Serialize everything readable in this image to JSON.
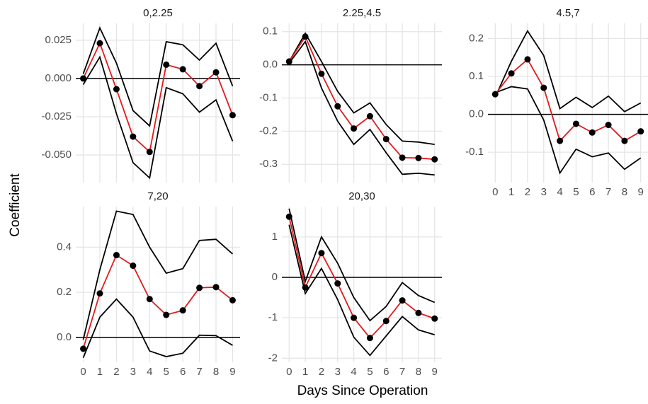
{
  "y_label": "Coefficient",
  "x_label": "Days Since Operation",
  "chart_data": [
    {
      "type": "line",
      "title": "0,2.25",
      "x": [
        0,
        1,
        2,
        3,
        4,
        5,
        6,
        7,
        8,
        9
      ],
      "xlim": [
        -0.45,
        9.45
      ],
      "xticks": [
        0,
        1,
        2,
        3,
        4,
        5,
        6,
        7,
        8,
        9
      ],
      "show_xticklabels": false,
      "ylim": [
        -0.068,
        0.036
      ],
      "yticks": [
        {
          "value": -0.05,
          "label": "-0.050"
        },
        {
          "value": -0.025,
          "label": "-0.025"
        },
        {
          "value": 0,
          "label": "0.000"
        },
        {
          "value": 0.025,
          "label": "0.025"
        }
      ],
      "hline": 0,
      "grid": true,
      "series": [
        {
          "color": "#000000",
          "values": [
            -0.004,
            0.014,
            -0.023,
            -0.055,
            -0.065,
            -0.006,
            -0.01,
            -0.022,
            -0.014,
            -0.041
          ]
        },
        {
          "color": "#000000",
          "values": [
            0.003,
            0.033,
            0.01,
            -0.021,
            -0.031,
            0.024,
            0.022,
            0.012,
            0.023,
            -0.005
          ]
        },
        {
          "color": "#e41a1c",
          "markers": true,
          "values": [
            0.0,
            0.023,
            -0.007,
            -0.038,
            -0.048,
            0.009,
            0.006,
            -0.005,
            0.004,
            -0.024
          ]
        }
      ]
    },
    {
      "type": "line",
      "title": "2.25,4.5",
      "x": [
        0,
        1,
        2,
        3,
        4,
        5,
        6,
        7,
        8,
        9
      ],
      "xlim": [
        -0.45,
        9.45
      ],
      "xticks": [
        0,
        1,
        2,
        3,
        4,
        5,
        6,
        7,
        8,
        9
      ],
      "show_xticklabels": false,
      "ylim": [
        -0.355,
        0.125
      ],
      "yticks": [
        -0.3,
        -0.2,
        -0.1,
        {
          "value": 0,
          "label": "0.0"
        },
        0.1
      ],
      "hline": 0,
      "grid": true,
      "series": [
        {
          "color": "#000000",
          "values": [
            0.005,
            0.07,
            -0.07,
            -0.17,
            -0.24,
            -0.195,
            -0.265,
            -0.33,
            -0.327,
            -0.332
          ]
        },
        {
          "color": "#000000",
          "values": [
            0.01,
            0.095,
            0.01,
            -0.08,
            -0.145,
            -0.115,
            -0.18,
            -0.23,
            -0.233,
            -0.24
          ]
        },
        {
          "color": "#e41a1c",
          "markers": true,
          "values": [
            0.01,
            0.085,
            -0.027,
            -0.125,
            -0.192,
            -0.155,
            -0.224,
            -0.28,
            -0.281,
            -0.285
          ]
        }
      ]
    },
    {
      "type": "line",
      "title": "4.5,7",
      "x": [
        0,
        1,
        2,
        3,
        4,
        5,
        6,
        7,
        8,
        9
      ],
      "xlim": [
        -0.45,
        9.45
      ],
      "xticks": [
        0,
        1,
        2,
        3,
        4,
        5,
        6,
        7,
        8,
        9
      ],
      "show_xticklabels": true,
      "ylim": [
        -0.18,
        0.24
      ],
      "yticks": [
        -0.1,
        {
          "value": 0,
          "label": "0.0"
        },
        0.1,
        0.2
      ],
      "hline": 0,
      "grid": true,
      "series": [
        {
          "color": "#000000",
          "values": [
            0.057,
            0.073,
            0.067,
            -0.015,
            -0.155,
            -0.092,
            -0.112,
            -0.102,
            -0.145,
            -0.115
          ]
        },
        {
          "color": "#000000",
          "values": [
            0.045,
            0.14,
            0.22,
            0.155,
            0.015,
            0.045,
            0.018,
            0.048,
            0.007,
            0.03
          ]
        },
        {
          "color": "#e41a1c",
          "markers": true,
          "values": [
            0.053,
            0.108,
            0.145,
            0.07,
            -0.07,
            -0.025,
            -0.048,
            -0.028,
            -0.07,
            -0.045
          ]
        }
      ]
    },
    {
      "type": "line",
      "title": "7,20",
      "x": [
        0,
        1,
        2,
        3,
        4,
        5,
        6,
        7,
        8,
        9
      ],
      "xlim": [
        -0.45,
        9.45
      ],
      "xticks": [
        0,
        1,
        2,
        3,
        4,
        5,
        6,
        7,
        8,
        9
      ],
      "show_xticklabels": true,
      "ylim": [
        -0.11,
        0.58
      ],
      "yticks": [
        {
          "value": 0,
          "label": "0.0"
        },
        0.2,
        0.4
      ],
      "hline": 0,
      "grid": true,
      "series": [
        {
          "color": "#000000",
          "values": [
            -0.09,
            0.09,
            0.17,
            0.09,
            -0.06,
            -0.085,
            -0.07,
            0.01,
            0.008,
            -0.035
          ]
        },
        {
          "color": "#000000",
          "values": [
            -0.01,
            0.3,
            0.56,
            0.545,
            0.4,
            0.285,
            0.305,
            0.43,
            0.435,
            0.37
          ]
        },
        {
          "color": "#e41a1c",
          "markers": true,
          "values": [
            -0.05,
            0.195,
            0.365,
            0.318,
            0.17,
            0.1,
            0.12,
            0.22,
            0.223,
            0.165
          ]
        }
      ]
    },
    {
      "type": "line",
      "title": "20,30",
      "x": [
        0,
        1,
        2,
        3,
        4,
        5,
        6,
        7,
        8,
        9
      ],
      "xlim": [
        -0.45,
        9.45
      ],
      "xticks": [
        0,
        1,
        2,
        3,
        4,
        5,
        6,
        7,
        8,
        9
      ],
      "show_xticklabels": true,
      "ylim": [
        -2.1,
        1.75
      ],
      "yticks": [
        -2,
        -1,
        0,
        1
      ],
      "hline": 0,
      "grid": true,
      "series": [
        {
          "color": "#000000",
          "values": [
            1.3,
            -0.4,
            0.22,
            -0.55,
            -1.48,
            -1.93,
            -1.45,
            -0.97,
            -1.3,
            -1.42
          ]
        },
        {
          "color": "#000000",
          "values": [
            1.7,
            -0.1,
            1.0,
            0.35,
            -0.5,
            -1.07,
            -0.72,
            -0.13,
            -0.45,
            -0.62
          ]
        },
        {
          "color": "#e41a1c",
          "markers": true,
          "values": [
            1.5,
            -0.25,
            0.6,
            -0.15,
            -1.0,
            -1.5,
            -1.08,
            -0.57,
            -0.88,
            -1.02
          ]
        }
      ]
    }
  ]
}
